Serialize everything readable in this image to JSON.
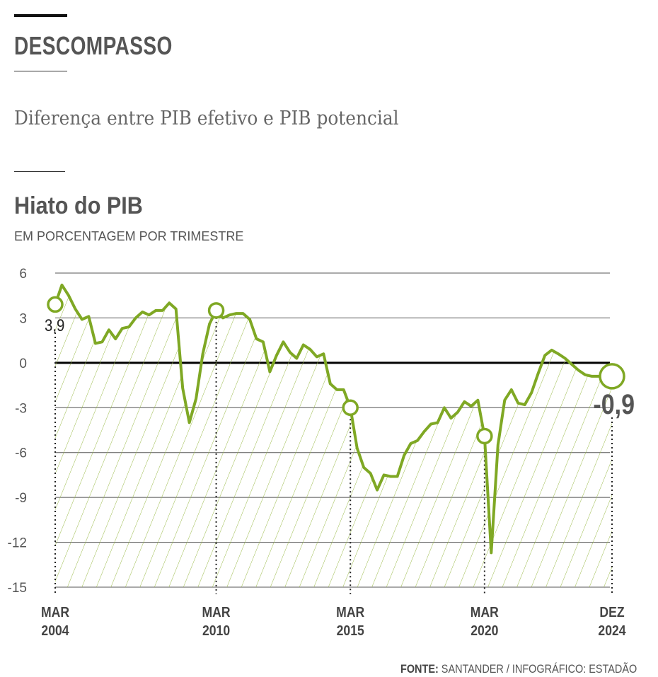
{
  "header": {
    "kicker": "DESCOMPASSO",
    "subtitle": "Diferença entre PIB efetivo e PIB potencial",
    "chart_title": "Hiato do PIB",
    "unit": "EM PORCENTAGEM POR TRIMESTRE"
  },
  "footer": {
    "source_label": "FONTE:",
    "source_text": "SANTANDER  / INFOGRÁFICO: ESTADÃO"
  },
  "colors": {
    "line": "#7fa824",
    "hatch": "#9bbb4a",
    "text": "#555555"
  },
  "chart_data": {
    "type": "line",
    "title": "Hiato do PIB",
    "ylabel": "EM PORCENTAGEM POR TRIMESTRE",
    "ylim": [
      -15,
      6
    ],
    "yticks": [
      6,
      3,
      0,
      -3,
      -6,
      -9,
      -12,
      -15
    ],
    "x_start": "MAR 2004",
    "x_end": "DEZ 2024",
    "frequency": "quarterly",
    "xtick_labels": [
      {
        "index": 0,
        "line1": "MAR",
        "line2": "2004"
      },
      {
        "index": 24,
        "line1": "MAR",
        "line2": "2010"
      },
      {
        "index": 44,
        "line1": "MAR",
        "line2": "2015"
      },
      {
        "index": 64,
        "line1": "MAR",
        "line2": "2020"
      },
      {
        "index": 83,
        "line1": "DEZ",
        "line2": "2024"
      }
    ],
    "highlighted_points": [
      {
        "index": 0,
        "label": "3,9"
      },
      {
        "index": 24,
        "label": ""
      },
      {
        "index": 44,
        "label": ""
      },
      {
        "index": 64,
        "label": ""
      },
      {
        "index": 83,
        "label": "-0,9"
      }
    ],
    "values": [
      3.9,
      5.2,
      4.5,
      3.6,
      2.9,
      3.1,
      1.3,
      1.4,
      2.2,
      1.6,
      2.3,
      2.4,
      3.0,
      3.4,
      3.2,
      3.5,
      3.5,
      4.0,
      3.6,
      -1.7,
      -4.0,
      -2.4,
      0.6,
      2.6,
      3.5,
      3.0,
      3.2,
      3.3,
      3.3,
      2.9,
      1.6,
      1.4,
      -0.6,
      0.5,
      1.4,
      0.7,
      0.3,
      1.2,
      0.9,
      0.4,
      0.6,
      -1.4,
      -1.8,
      -1.8,
      -3.0,
      -5.7,
      -7.0,
      -7.4,
      -8.5,
      -7.5,
      -7.6,
      -7.6,
      -6.2,
      -5.4,
      -5.2,
      -4.6,
      -4.1,
      -4.0,
      -3.0,
      -3.7,
      -3.3,
      -2.6,
      -2.9,
      -2.5,
      -4.9,
      -12.7,
      -5.5,
      -2.5,
      -1.8,
      -2.7,
      -2.8,
      -2.0,
      -0.7,
      0.5,
      0.85,
      0.6,
      0.3,
      -0.1,
      -0.5,
      -0.8,
      -0.9,
      -0.9,
      -0.9,
      -0.9
    ],
    "grid": true
  }
}
